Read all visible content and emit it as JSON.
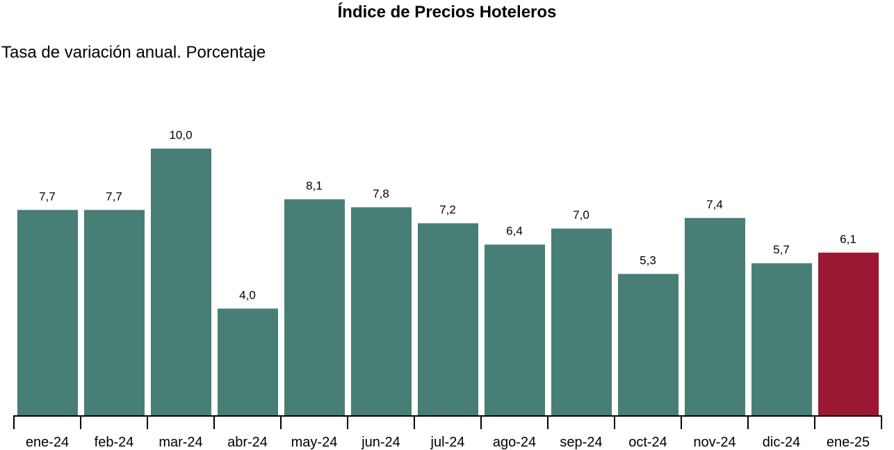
{
  "chart_data": {
    "type": "bar",
    "title": "Índice de Precios Hoteleros",
    "subtitle": "Tasa de variación anual. Porcentaje",
    "categories": [
      "ene-24",
      "feb-24",
      "mar-24",
      "abr-24",
      "may-24",
      "jun-24",
      "jul-24",
      "ago-24",
      "sep-24",
      "oct-24",
      "nov-24",
      "dic-24",
      "ene-25"
    ],
    "values": [
      7.7,
      7.7,
      10.0,
      4.0,
      8.1,
      7.8,
      7.2,
      6.4,
      7.0,
      5.3,
      7.4,
      5.7,
      6.1
    ],
    "value_labels": [
      "7,7",
      "7,7",
      "10,0",
      "4,0",
      "8,1",
      "7,8",
      "7,2",
      "6,4",
      "7,0",
      "5,3",
      "7,4",
      "5,7",
      "6,1"
    ],
    "ylim": [
      0,
      10
    ],
    "grid": false,
    "legend": "none",
    "colors": {
      "default": "#477e76",
      "highlight": "#9b1834"
    },
    "highlight_category": "ene-25"
  }
}
